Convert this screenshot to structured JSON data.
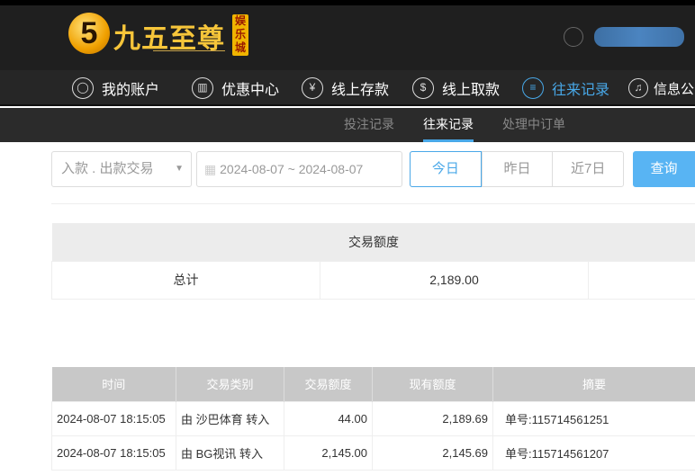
{
  "brand": {
    "logo_text": "九五至尊",
    "logo_badge": "娱乐城",
    "logo_mark": "5"
  },
  "nav": [
    {
      "label": "我的账户",
      "icon": "user-icon"
    },
    {
      "label": "优惠中心",
      "icon": "gift-icon"
    },
    {
      "label": "线上存款",
      "icon": "deposit-icon"
    },
    {
      "label": "线上取款",
      "icon": "withdraw-icon"
    },
    {
      "label": "往来记录",
      "icon": "records-icon",
      "active": true
    },
    {
      "label": "信息公",
      "icon": "bell-icon"
    }
  ],
  "subnav": [
    {
      "label": "投注记录"
    },
    {
      "label": "往来记录",
      "active": true
    },
    {
      "label": "处理中订单"
    }
  ],
  "filters": {
    "type_select": "入款 . 出款交易",
    "date_range": "2024-08-07 ~ 2024-08-07",
    "quick": [
      "今日",
      "昨日",
      "近7日"
    ],
    "query": "查询"
  },
  "summary": {
    "header": "交易额度",
    "label": "总计",
    "value": "2,189.00"
  },
  "records": {
    "columns": [
      "时间",
      "交易类别",
      "交易额度",
      "现有额度",
      "摘要"
    ],
    "rows": [
      [
        "2024-08-07 18:15:05",
        "由 沙巴体育 转入",
        "44.00",
        "2,189.69",
        "单号:115714561251"
      ],
      [
        "2024-08-07 18:15:05",
        "由 BG视讯 转入",
        "2,145.00",
        "2,145.69",
        "单号:115714561207"
      ]
    ]
  },
  "colors": {
    "accent": "#48a8e8",
    "query_button": "#58b4f3",
    "header_bg": "#1f1f1f"
  }
}
